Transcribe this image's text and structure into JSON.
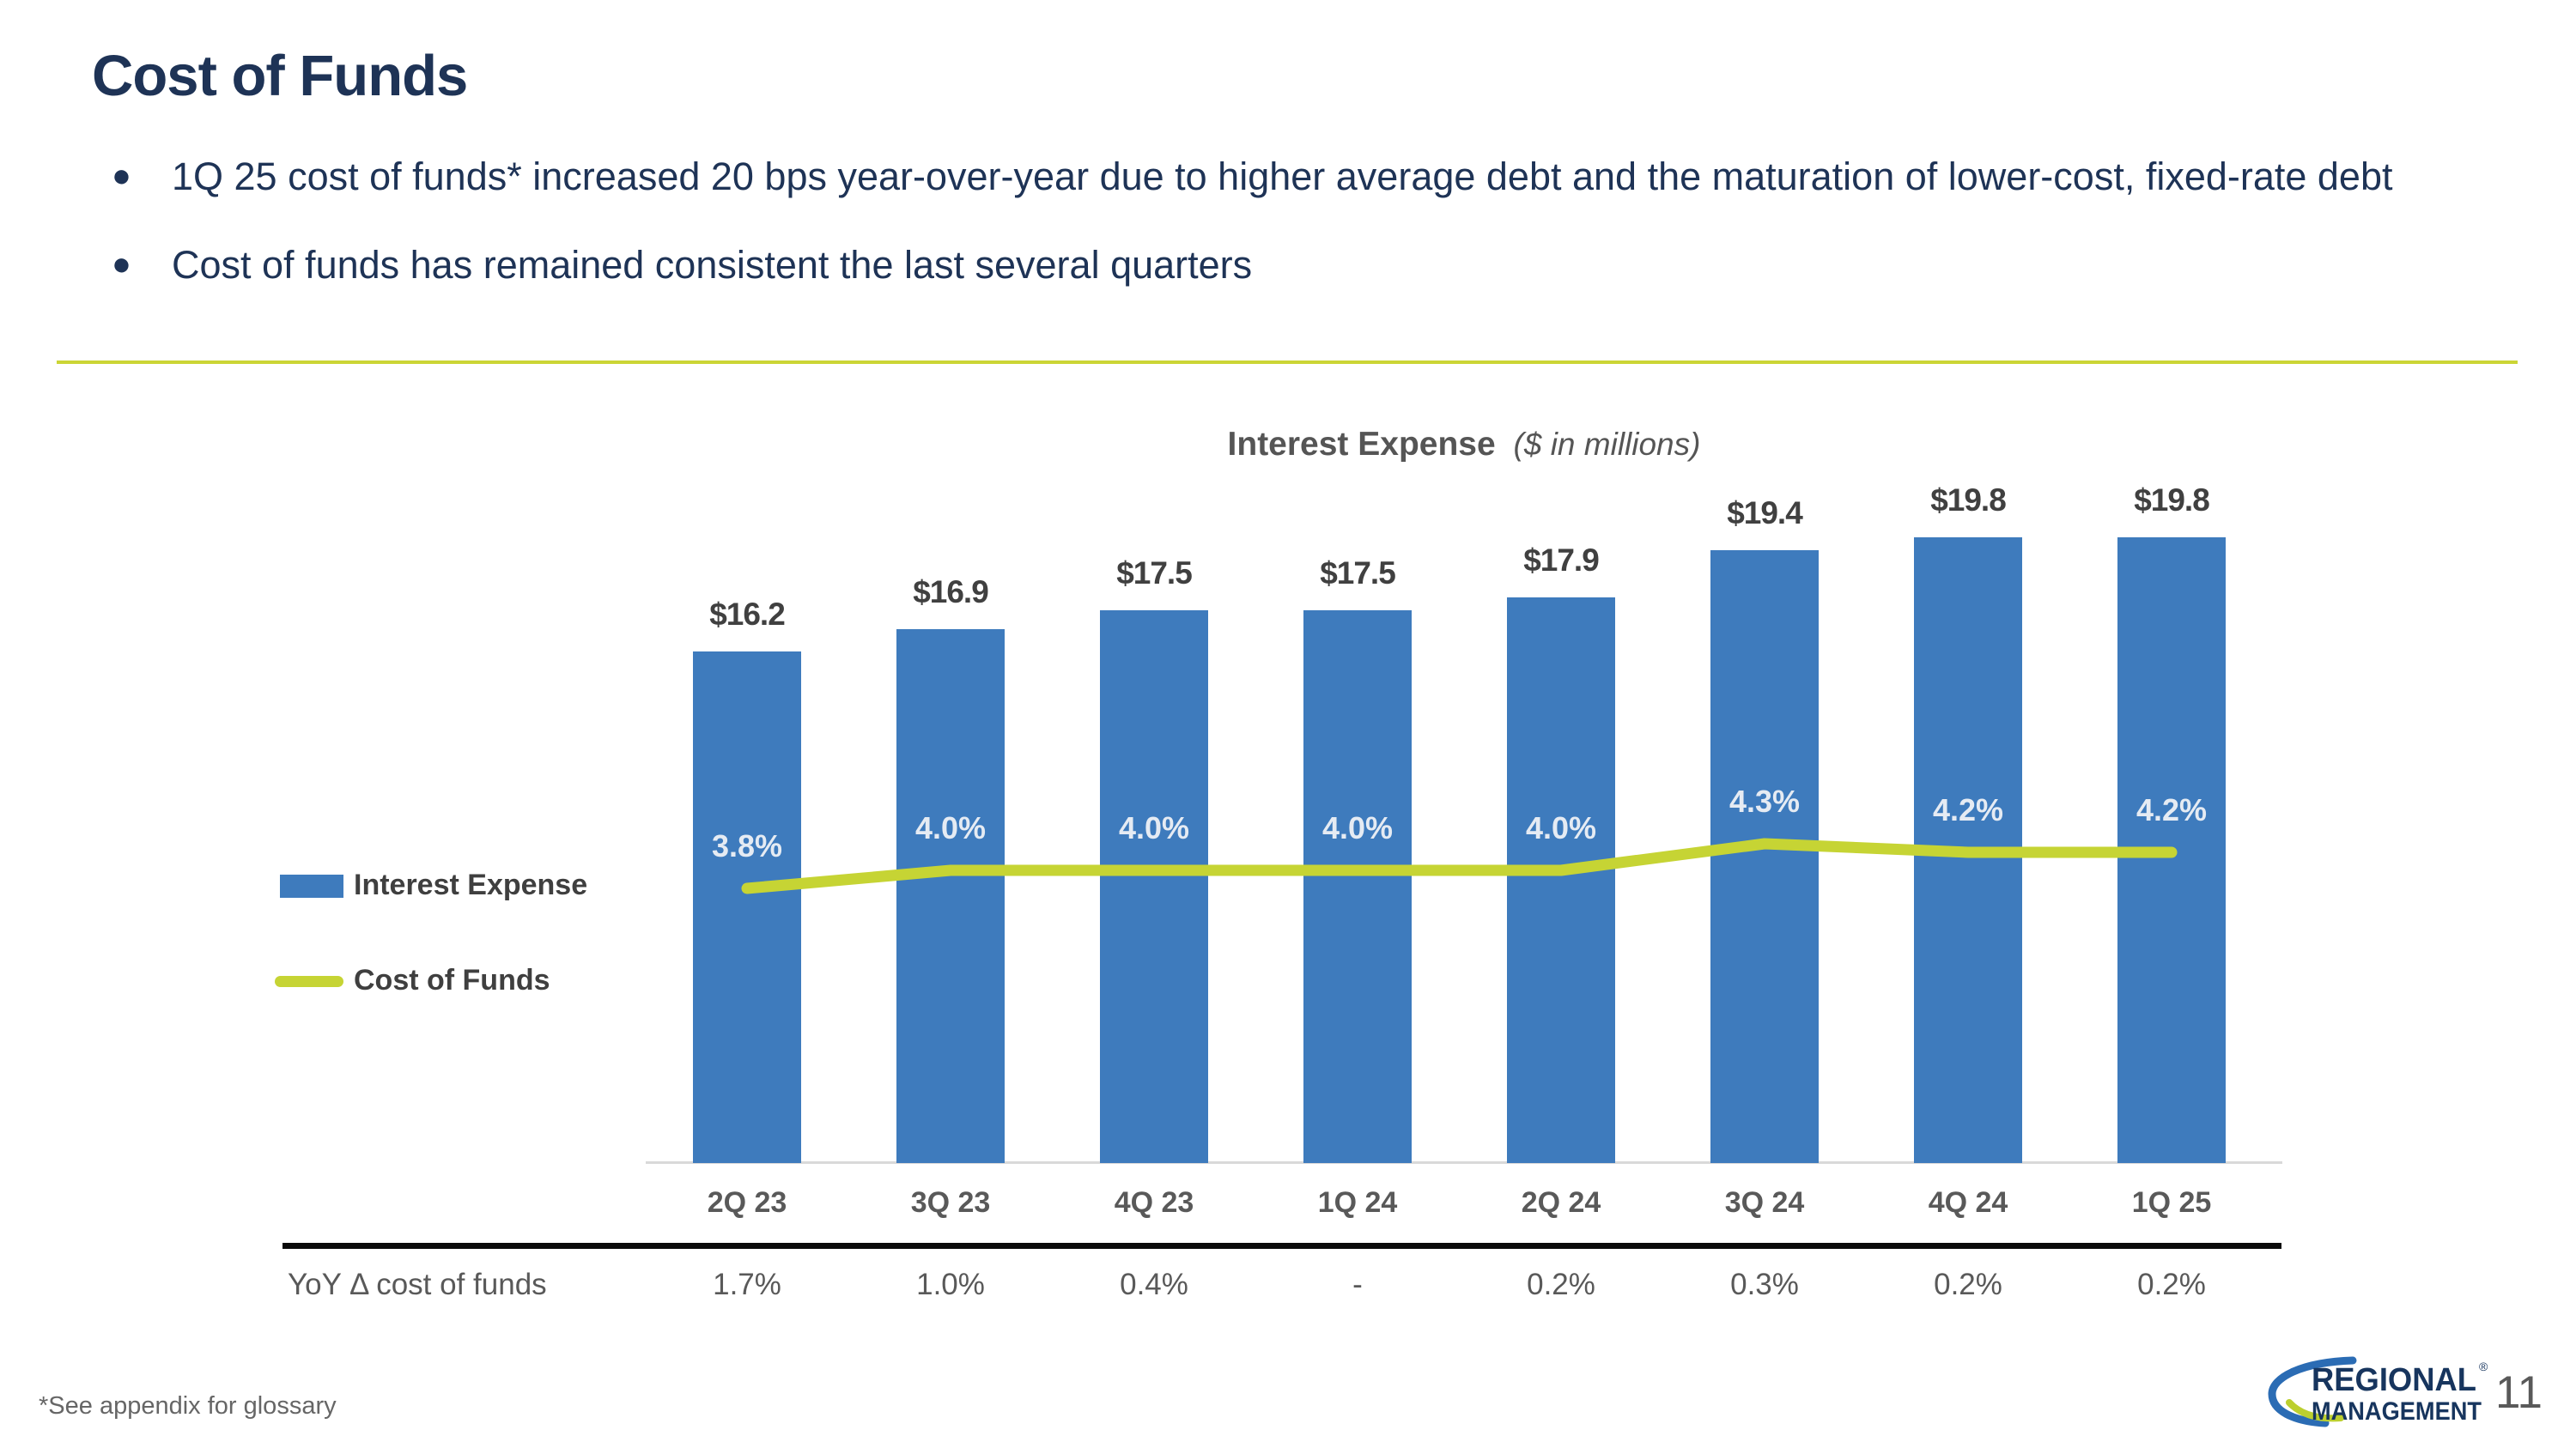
{
  "slide": {
    "title": "Cost of Funds",
    "bullets": [
      "1Q 25 cost of funds* increased 20 bps year-over-year due to higher average debt and the maturation of lower-cost, fixed-rate debt",
      "Cost of funds has remained consistent the last several quarters"
    ]
  },
  "chart_data": {
    "type": "bar",
    "title": "Interest Expense",
    "subtitle": "($ in millions)",
    "categories": [
      "2Q 23",
      "3Q 23",
      "4Q 23",
      "1Q 24",
      "2Q 24",
      "3Q 24",
      "4Q 24",
      "1Q 25"
    ],
    "series": [
      {
        "name": "Interest Expense",
        "type": "bar",
        "color": "#3E7BBD",
        "values": [
          16.2,
          16.9,
          17.5,
          17.5,
          17.9,
          19.4,
          19.8,
          19.8
        ],
        "labels": [
          "$16.2",
          "$16.9",
          "$17.5",
          "$17.5",
          "$17.9",
          "$19.4",
          "$19.8",
          "$19.8"
        ]
      },
      {
        "name": "Cost of Funds",
        "type": "line",
        "color": "#C6D434",
        "values": [
          3.8,
          4.0,
          4.0,
          4.0,
          4.0,
          4.3,
          4.2,
          4.2
        ],
        "labels": [
          "3.8%",
          "4.0%",
          "4.0%",
          "4.0%",
          "4.0%",
          "4.3%",
          "4.2%",
          "4.2%"
        ]
      }
    ],
    "legend_position": "left",
    "gridlines": false,
    "y_axis_visible": false
  },
  "table": {
    "row_label": "YoY Δ cost of funds",
    "values": [
      "1.7%",
      "1.0%",
      "0.4%",
      "-",
      "0.2%",
      "0.3%",
      "0.2%",
      "0.2%"
    ]
  },
  "footer": {
    "note": "*See appendix for glossary",
    "page_number": "11",
    "logo": {
      "line1": "REGIONAL",
      "line2": "MANAGEMENT",
      "registered": "®"
    }
  },
  "colors": {
    "navy_text": "#1E3356",
    "bar_blue": "#3E7BBD",
    "line_green": "#C6D434",
    "separator_yellow": "#CBD535",
    "gray_text": "#595959",
    "value_label_gray": "#404040",
    "logo_navy": "#17355E",
    "logo_swoosh_blue": "#2B6CB4",
    "logo_swoosh_green": "#BCCF2F"
  }
}
